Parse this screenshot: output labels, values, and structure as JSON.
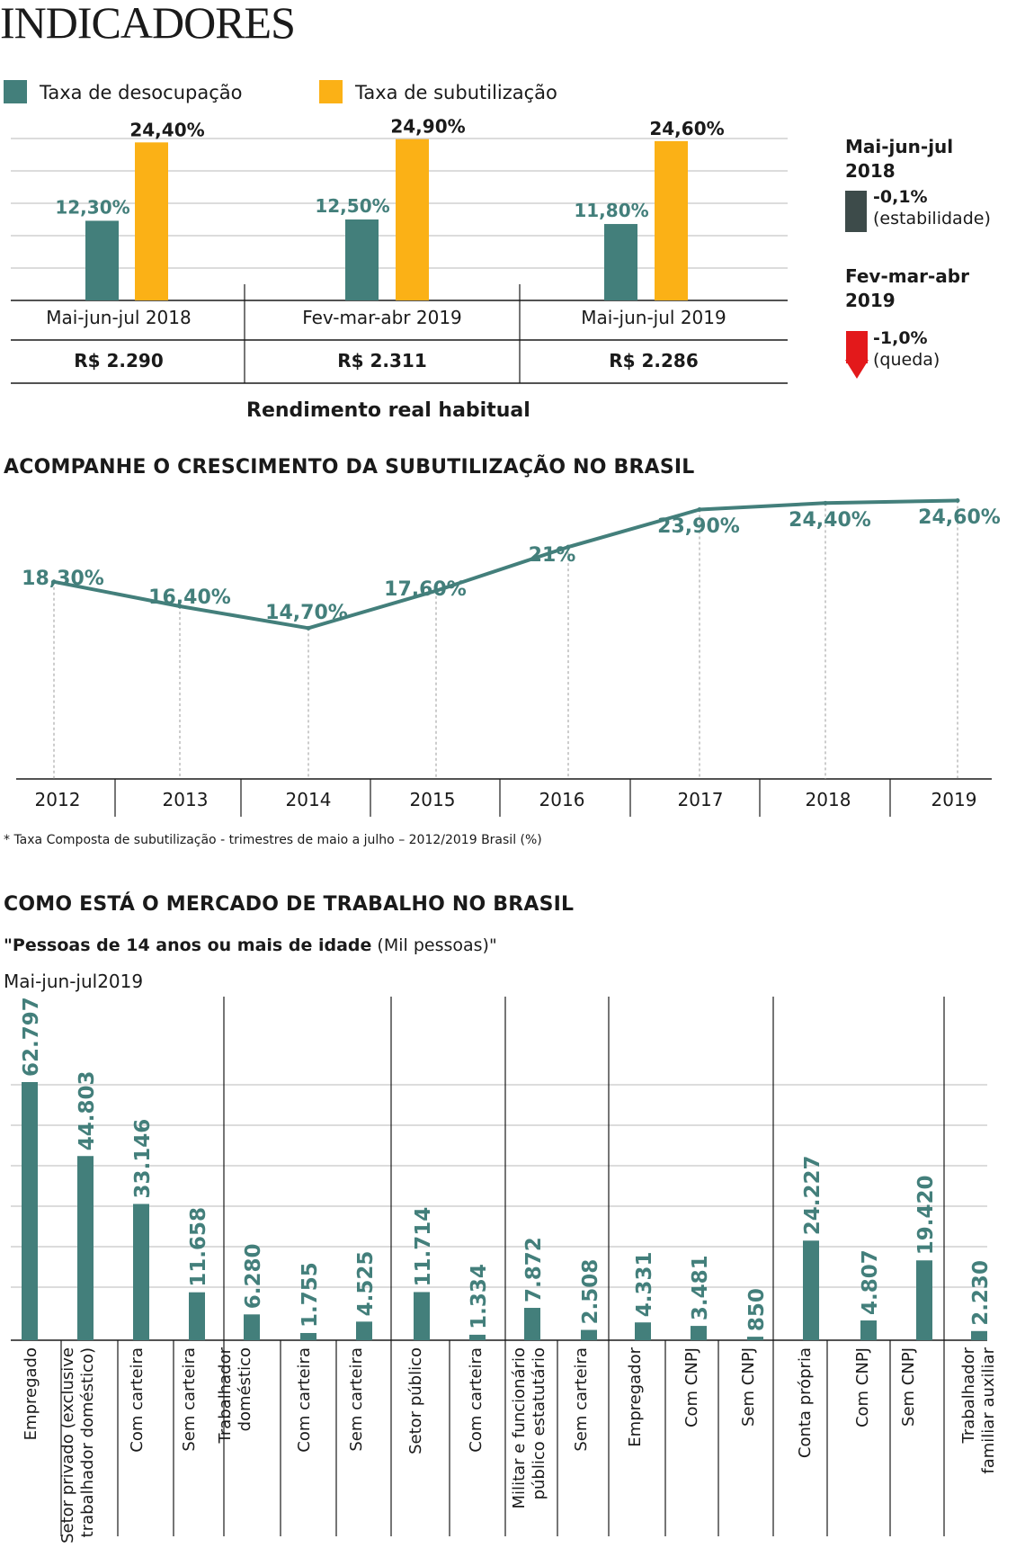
{
  "title": "INDICADORES",
  "legend": {
    "desocupacao": "Taxa de desocupação",
    "subutilizacao": "Taxa de subutilização"
  },
  "colors": {
    "teal": "#437f7b",
    "yellow": "#fbb116",
    "dark": "#3d4b4a",
    "red": "#e3191b"
  },
  "side_panel": {
    "block1_title_line1": "Mai-jun-jul",
    "block1_title_line2": "2018",
    "block1_value": "-0,1%",
    "block1_note": "(estabilidade)",
    "block2_title_line1": "Fev-mar-abr",
    "block2_title_line2": "2019",
    "block2_value": "-1,0%",
    "block2_note": "(queda)",
    "block2_icon": "down-arrow-icon"
  },
  "rendimento_label": "Rendimento real habitual",
  "section2_title": "ACOMPANHE O CRESCIMENTO DA SUBUTILIZAÇÃO NO BRASIL",
  "section2_note": "* Taxa Composta de subutilização - trimestres de maio a julho – 2012/2019 Brasil (%)",
  "section3_title": "COMO ESTÁ O MERCADO DE TRABALHO NO BRASIL",
  "section3_subtitle_bold": "\"Pessoas de 14 anos ou mais de idade",
  "section3_subtitle_rest": " (Mil pessoas)\"",
  "section3_period": "Mai-jun-jul2019",
  "chart_data": [
    {
      "type": "bar",
      "title": "INDICADORES",
      "categories": [
        "Mai-jun-jul 2018",
        "Fev-mar-abr 2019",
        "Mai-jun-jul 2019"
      ],
      "rendimento": [
        "R$ 2.290",
        "R$ 2.311",
        "R$ 2.286"
      ],
      "series": [
        {
          "name": "Taxa de desocupação",
          "values": [
            12.3,
            12.5,
            11.8
          ],
          "labels": [
            "12,30%",
            "12,50%",
            "11,80%"
          ]
        },
        {
          "name": "Taxa de subutilização",
          "values": [
            24.4,
            24.9,
            24.6
          ],
          "labels": [
            "24,40%",
            "24,90%",
            "24,60%"
          ]
        }
      ],
      "ylim": [
        0,
        25
      ]
    },
    {
      "type": "line",
      "title": "ACOMPANHE O CRESCIMENTO DA SUBUTILIZAÇÃO NO BRASIL",
      "x": [
        "2012",
        "2013",
        "2014",
        "2015",
        "2016",
        "2017",
        "2018",
        "2019"
      ],
      "values": [
        18.3,
        16.4,
        14.7,
        17.6,
        21.0,
        23.9,
        24.4,
        24.6
      ],
      "labels": [
        "18,30%",
        "16,40%",
        "14,70%",
        "17,60%",
        "21%",
        "23,90%",
        "24,40%",
        "24,60%"
      ],
      "ylim": [
        0,
        26
      ]
    },
    {
      "type": "bar",
      "title": "COMO ESTÁ O MERCADO DE TRABALHO NO BRASIL",
      "ylabel": "Mil pessoas",
      "categories": [
        "Empregado",
        "Setor privado (exclusive trabalhador doméstico)",
        "Com carteira",
        "Sem carteira",
        "Trabalhador doméstico",
        "Com carteira",
        "Sem carteira",
        "Setor público",
        "Com carteira",
        "Militar e funcionário público estatutário",
        "Sem carteira",
        "Empregador",
        "Com CNPJ",
        "Sem CNPJ",
        "Conta própria",
        "Com CNPJ",
        "Sem CNPJ",
        "Trabalhador familiar auxiliar"
      ],
      "values": [
        62797,
        44803,
        33146,
        11658,
        6280,
        1755,
        4525,
        11714,
        1334,
        7872,
        2508,
        4331,
        3481,
        850,
        24227,
        4807,
        19420,
        2230
      ],
      "labels": [
        "62.797",
        "44.803",
        "33.146",
        "11.658",
        "6.280",
        "1.755",
        "4.525",
        "11.714",
        "1.334",
        "7.872",
        "2.508",
        "4.331",
        "3.481",
        "850",
        "24.227",
        "4.807",
        "19.420",
        "2.230"
      ],
      "ylim": [
        0,
        64000
      ]
    }
  ]
}
